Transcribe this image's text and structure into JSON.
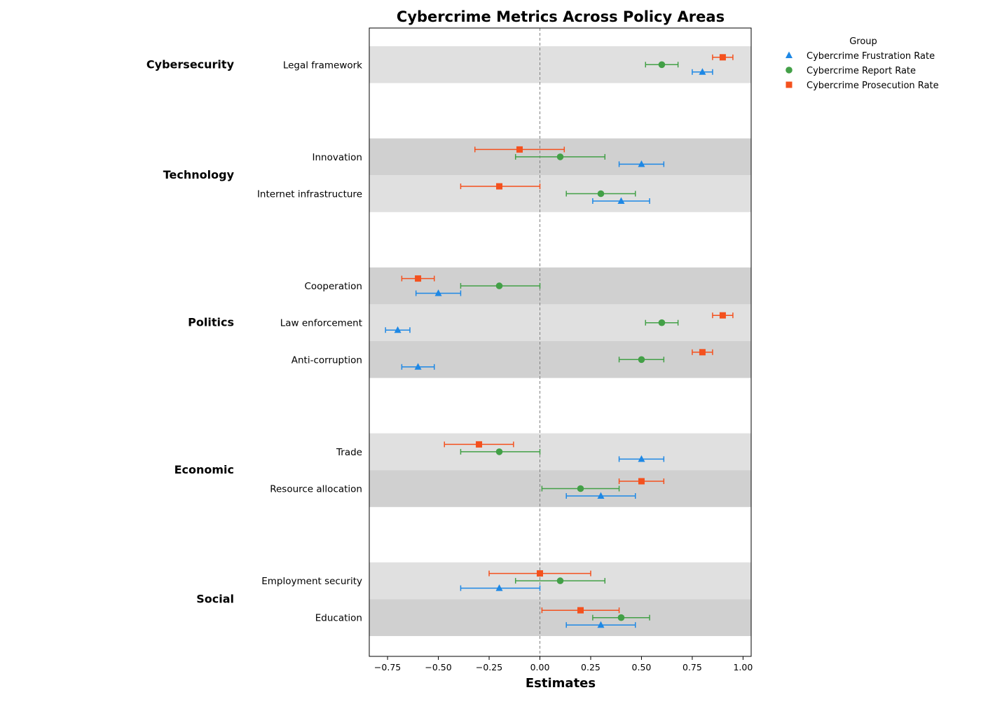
{
  "chart_data": {
    "type": "scatter",
    "subtype": "forest-plot-with-error-bars",
    "title": "Cybercrime Metrics Across Policy Areas",
    "xlabel": "Estimates",
    "xlim": [
      -0.84,
      1.04
    ],
    "xticks": [
      -0.75,
      -0.5,
      -0.25,
      0.0,
      0.25,
      0.5,
      0.75,
      1.0
    ],
    "xtick_labels": [
      "−0.75",
      "−0.50",
      "−0.25",
      "0.00",
      "0.25",
      "0.50",
      "0.75",
      "1.00"
    ],
    "reference_line_x": 0.0,
    "legend": {
      "title": "Group",
      "placement": "upper-right-outside"
    },
    "series": [
      {
        "name": "Cybercrime Frustration Rate",
        "marker": "triangle",
        "color": "#1E88E5"
      },
      {
        "name": "Cybercrime Report Rate",
        "marker": "circle",
        "color": "#43A047"
      },
      {
        "name": "Cybercrime Prosecution Rate",
        "marker": "square",
        "color": "#F4511E"
      }
    ],
    "groups": [
      {
        "name": "Cybersecurity",
        "items": [
          {
            "label": "Legal framework",
            "values": [
              [
                0.8,
                0.75,
                0.85
              ],
              [
                0.6,
                0.52,
                0.68
              ],
              [
                0.9,
                0.85,
                0.95
              ]
            ]
          }
        ]
      },
      {
        "name": "Technology",
        "items": [
          {
            "label": "Innovation",
            "values": [
              [
                0.5,
                0.39,
                0.61
              ],
              [
                0.1,
                -0.12,
                0.32
              ],
              [
                -0.1,
                -0.32,
                0.12
              ]
            ]
          },
          {
            "label": "Internet infrastructure",
            "values": [
              [
                0.4,
                0.26,
                0.54
              ],
              [
                0.3,
                0.13,
                0.47
              ],
              [
                -0.2,
                -0.39,
                0.0
              ]
            ]
          }
        ]
      },
      {
        "name": "Politics",
        "items": [
          {
            "label": "Cooperation",
            "values": [
              [
                -0.5,
                -0.61,
                -0.39
              ],
              [
                -0.2,
                -0.39,
                0.0
              ],
              [
                -0.6,
                -0.68,
                -0.52
              ]
            ]
          },
          {
            "label": "Law enforcement",
            "values": [
              [
                -0.7,
                -0.76,
                -0.64
              ],
              [
                0.6,
                0.52,
                0.68
              ],
              [
                0.9,
                0.85,
                0.95
              ]
            ]
          },
          {
            "label": "Anti-corruption",
            "values": [
              [
                -0.6,
                -0.68,
                -0.52
              ],
              [
                0.5,
                0.39,
                0.61
              ],
              [
                0.8,
                0.75,
                0.85
              ]
            ]
          }
        ]
      },
      {
        "name": "Economic",
        "items": [
          {
            "label": "Trade",
            "values": [
              [
                0.5,
                0.39,
                0.61
              ],
              [
                -0.2,
                -0.39,
                0.0
              ],
              [
                -0.3,
                -0.47,
                -0.13
              ]
            ]
          },
          {
            "label": "Resource allocation",
            "values": [
              [
                0.3,
                0.13,
                0.47
              ],
              [
                0.2,
                0.01,
                0.39
              ],
              [
                0.5,
                0.39,
                0.61
              ]
            ]
          }
        ]
      },
      {
        "name": "Social",
        "items": [
          {
            "label": "Employment security",
            "values": [
              [
                -0.2,
                -0.39,
                0.0
              ],
              [
                0.1,
                -0.12,
                0.32
              ],
              [
                0.0,
                -0.25,
                0.25
              ]
            ]
          },
          {
            "label": "Education",
            "values": [
              [
                0.3,
                0.13,
                0.47
              ],
              [
                0.4,
                0.26,
                0.54
              ],
              [
                0.2,
                0.01,
                0.39
              ]
            ]
          }
        ]
      }
    ]
  }
}
